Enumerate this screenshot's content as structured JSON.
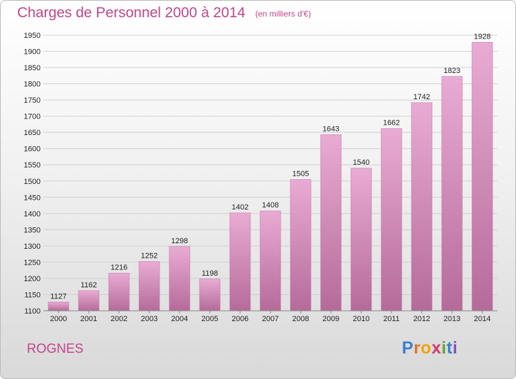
{
  "header": {
    "title": "Charges de Personnel 2000 à 2014",
    "subtitle": "(en milliers d'€)"
  },
  "footer": {
    "city": "ROGNES",
    "logo_letters": [
      "P",
      "r",
      "o",
      "x",
      "i",
      "t",
      "i"
    ],
    "logo_colors": [
      "#3a7fd0",
      "#e0732a",
      "#f0a30a",
      "#d63a6b",
      "#5aa832",
      "#3a7fd0",
      "#8a4fb8"
    ]
  },
  "colors": {
    "accent": "#c2458a",
    "bar_top": "#e9abd3",
    "bar_bottom": "#b56b9a",
    "bar_edge": "#c77fb0",
    "grid": "#cfcfcf"
  },
  "chart_data": {
    "type": "bar",
    "title": "Charges de Personnel 2000 à 2014",
    "subtitle": "(en milliers d'€)",
    "categories": [
      "2000",
      "2001",
      "2002",
      "2003",
      "2004",
      "2005",
      "2006",
      "2007",
      "2008",
      "2009",
      "2010",
      "2011",
      "2012",
      "2013",
      "2014"
    ],
    "values": [
      1127,
      1162,
      1216,
      1252,
      1298,
      1198,
      1402,
      1408,
      1505,
      1643,
      1540,
      1662,
      1742,
      1823,
      1928
    ],
    "ylim": [
      1100,
      1950
    ],
    "ytick_step": 50,
    "xlabel": "",
    "ylabel": "",
    "grid": true
  }
}
